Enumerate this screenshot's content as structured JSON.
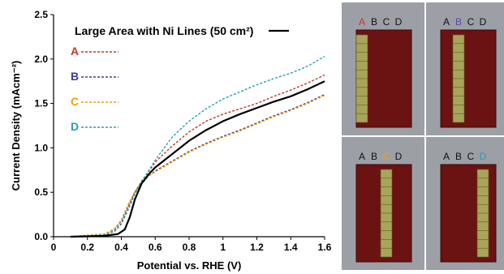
{
  "chart_data": {
    "type": "line",
    "title": "",
    "xlabel": "Potential vs. RHE (V)",
    "ylabel": "Current Density (mAcm⁻²)",
    "xlim": [
      0,
      1.6
    ],
    "ylim": [
      0,
      2.5
    ],
    "xticks": [
      "0",
      "0.2",
      "0.4",
      "0.6",
      "0.8",
      "1",
      "1.2",
      "1.4",
      "1.6"
    ],
    "yticks": [
      "0.0",
      "0.5",
      "1.0",
      "1.5",
      "2.0",
      "2.5"
    ],
    "legend_position": "top-left",
    "series": [
      {
        "name": "Large Area with Ni Lines (50 cm²)",
        "color": "#000000",
        "style": "solid",
        "x": [
          0.1,
          0.3,
          0.38,
          0.42,
          0.45,
          0.48,
          0.52,
          0.56,
          0.6,
          0.7,
          0.8,
          0.9,
          1.0,
          1.1,
          1.2,
          1.3,
          1.4,
          1.5,
          1.6
        ],
        "y": [
          0.0,
          0.01,
          0.03,
          0.08,
          0.22,
          0.42,
          0.6,
          0.7,
          0.78,
          0.93,
          1.08,
          1.2,
          1.3,
          1.38,
          1.45,
          1.52,
          1.58,
          1.66,
          1.75
        ]
      },
      {
        "name": "A",
        "color": "#c0392b",
        "style": "dashed",
        "x": [
          0.1,
          0.3,
          0.36,
          0.4,
          0.44,
          0.48,
          0.52,
          0.56,
          0.6,
          0.7,
          0.8,
          0.9,
          1.0,
          1.1,
          1.2,
          1.3,
          1.4,
          1.5,
          1.6
        ],
        "y": [
          0.0,
          0.02,
          0.06,
          0.15,
          0.32,
          0.5,
          0.63,
          0.73,
          0.84,
          1.02,
          1.18,
          1.3,
          1.38,
          1.44,
          1.5,
          1.58,
          1.65,
          1.73,
          1.82
        ]
      },
      {
        "name": "B",
        "color": "#3d3f8f",
        "style": "dashed",
        "x": [
          0.1,
          0.3,
          0.36,
          0.4,
          0.44,
          0.48,
          0.52,
          0.56,
          0.6,
          0.7,
          0.8,
          0.9,
          1.0,
          1.1,
          1.2,
          1.3,
          1.4,
          1.5,
          1.6
        ],
        "y": [
          0.0,
          0.03,
          0.08,
          0.18,
          0.35,
          0.5,
          0.6,
          0.68,
          0.74,
          0.85,
          0.96,
          1.05,
          1.13,
          1.2,
          1.28,
          1.36,
          1.43,
          1.51,
          1.6
        ]
      },
      {
        "name": "C",
        "color": "#f0a30a",
        "style": "dashed",
        "x": [
          0.1,
          0.3,
          0.36,
          0.4,
          0.44,
          0.48,
          0.52,
          0.56,
          0.6,
          0.7,
          0.8,
          0.9,
          1.0,
          1.1,
          1.2,
          1.3,
          1.4,
          1.5,
          1.6
        ],
        "y": [
          0.0,
          0.03,
          0.09,
          0.19,
          0.36,
          0.51,
          0.61,
          0.68,
          0.73,
          0.84,
          0.95,
          1.04,
          1.12,
          1.19,
          1.27,
          1.35,
          1.42,
          1.5,
          1.59
        ]
      },
      {
        "name": "D",
        "color": "#2a9db5",
        "style": "dashed",
        "x": [
          0.1,
          0.3,
          0.36,
          0.4,
          0.44,
          0.48,
          0.52,
          0.56,
          0.6,
          0.7,
          0.8,
          0.9,
          1.0,
          1.1,
          1.2,
          1.3,
          1.4,
          1.5,
          1.6
        ],
        "y": [
          0.0,
          0.02,
          0.06,
          0.14,
          0.3,
          0.48,
          0.62,
          0.74,
          0.86,
          1.12,
          1.3,
          1.44,
          1.55,
          1.63,
          1.71,
          1.78,
          1.84,
          1.92,
          2.03
        ]
      }
    ]
  },
  "photo_panels": [
    {
      "labels": [
        "A",
        "B",
        "C",
        "D"
      ],
      "highlight": 0,
      "highlight_color": "#c0392b"
    },
    {
      "labels": [
        "A",
        "B",
        "C",
        "D"
      ],
      "highlight": 1,
      "highlight_color": "#5b4ea0"
    },
    {
      "labels": [
        "A",
        "B",
        "C",
        "D"
      ],
      "highlight": 2,
      "highlight_color": "#f0a30a"
    },
    {
      "labels": [
        "A",
        "B",
        "C",
        "D"
      ],
      "highlight": 3,
      "highlight_color": "#2a9db5"
    }
  ]
}
